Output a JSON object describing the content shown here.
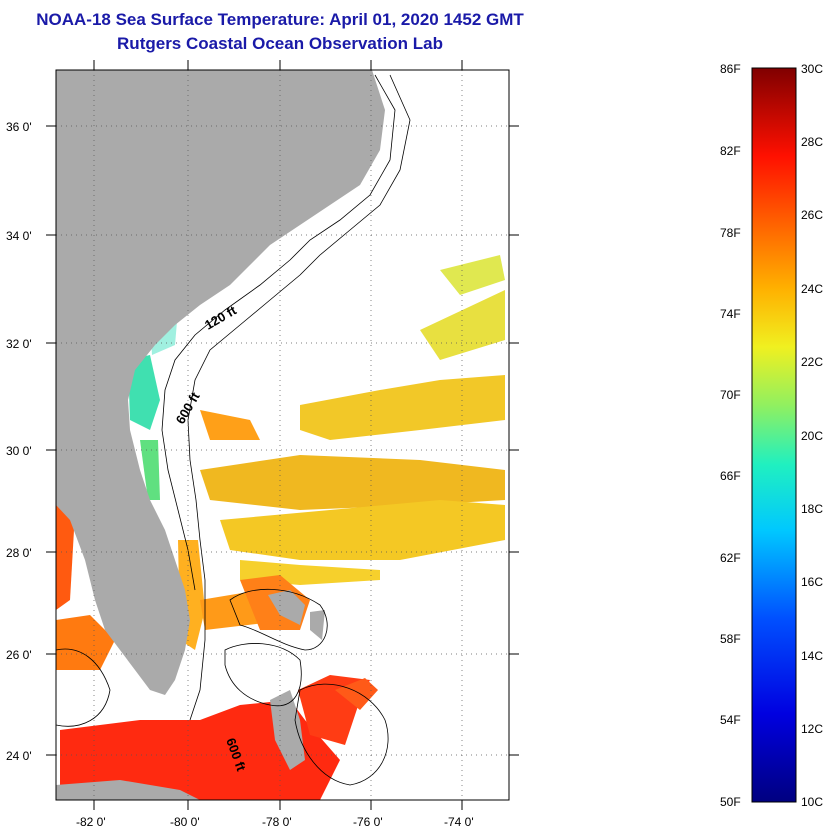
{
  "header": {
    "title": "NOAA-18 Sea Surface Temperature:  April 01, 2020 1452 GMT",
    "subtitle": "Rutgers Coastal Ocean Observation Lab"
  },
  "axes": {
    "lat_ticks": [
      "36 0'",
      "34 0'",
      "32 0'",
      "30 0'",
      "28 0'",
      "26 0'",
      "24 0'"
    ],
    "lon_ticks": [
      "-82 0'",
      "-80 0'",
      "-78 0'",
      "-76 0'",
      "-74 0'"
    ]
  },
  "contours": {
    "label_120": "120 ft",
    "label_600": "600 ft",
    "label_600b": "600 ft"
  },
  "colorbar": {
    "fahrenheit": [
      "86F",
      "82F",
      "78F",
      "74F",
      "70F",
      "66F",
      "62F",
      "58F",
      "54F",
      "50F"
    ],
    "celsius": [
      "30C",
      "28C",
      "26C",
      "24C",
      "22C",
      "20C",
      "18C",
      "16C",
      "14C",
      "12C",
      "10C"
    ]
  },
  "colors": {
    "land": "#aaaaaa",
    "title": "#1a1aa8"
  }
}
